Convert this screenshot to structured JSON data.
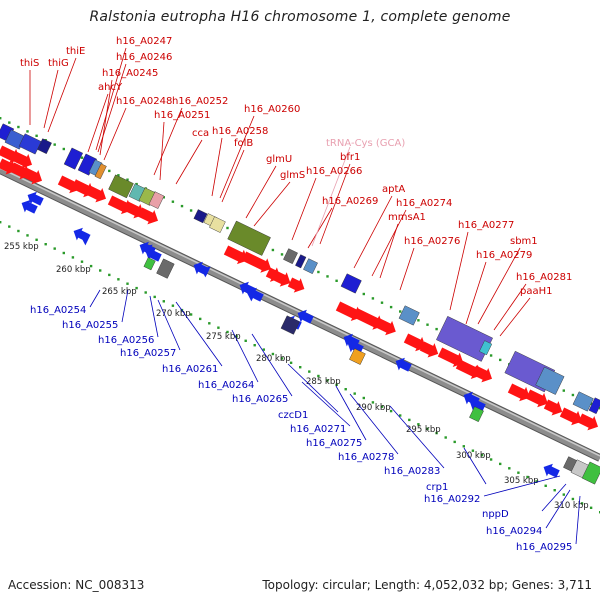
{
  "title": "Ralstonia eutropha H16 chromosome 1, complete genome",
  "footer": {
    "accession": "Accession: NC_008313",
    "summary": "Topology: circular; Length: 4,052,032 bp; Genes: 3,711"
  },
  "colors": {
    "forward_label": "#cc0000",
    "reverse_label": "#0000bb",
    "trna_label": "#e8a0b0",
    "forward_feature": "#ff1414",
    "reverse_feature": "#1428e6",
    "backbone": "#8c8c8c",
    "dots": "#2a9a2a"
  },
  "scale_ticks": [
    "255 kbp",
    "260 kbp",
    "265 kbp",
    "270 kbp",
    "275 kbp",
    "280 kbp",
    "285 kbp",
    "290 kbp",
    "295 kbp",
    "300 kbp",
    "305 kbp",
    "310 kbp"
  ],
  "forward_genes": [
    "thiS",
    "thiG",
    "thiE",
    "h16_A0247",
    "h16_A0246",
    "h16_A0245",
    "ahcY",
    "h16_A0248",
    "h16_A0252",
    "h16_A0251",
    "cca",
    "h16_A0258",
    "h16_A0260",
    "folB",
    "glmU",
    "tRNA-Cys (GCA)",
    "bfr1",
    "glmS",
    "h16_A0266",
    "h16_A0269",
    "aptA",
    "h16_A0274",
    "mmsA1",
    "h16_A0276",
    "h16_A0277",
    "sbm1",
    "h16_A0279",
    "h16_A0281",
    "paaH1"
  ],
  "reverse_genes": [
    "h16_A0254",
    "h16_A0255",
    "h16_A0256",
    "h16_A0257",
    "h16_A0261",
    "h16_A0264",
    "h16_A0265",
    "czcD1",
    "h16_A0271",
    "h16_A0275",
    "h16_A0278",
    "h16_A0283",
    "crp1",
    "h16_A0292",
    "nppD",
    "h16_A0294",
    "h16_A0295"
  ]
}
